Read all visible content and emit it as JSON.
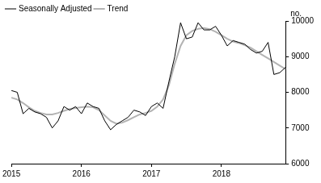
{
  "chart_data": {
    "type": "line",
    "categories": [
      "2015",
      null,
      null,
      null,
      null,
      null,
      null,
      null,
      null,
      null,
      null,
      null,
      "2016",
      null,
      null,
      null,
      null,
      null,
      null,
      null,
      null,
      null,
      null,
      null,
      "2017",
      null,
      null,
      null,
      null,
      null,
      null,
      null,
      null,
      null,
      null,
      null,
      "2018",
      null,
      null,
      null,
      null,
      null,
      null,
      null,
      null,
      null,
      null,
      null
    ],
    "series": [
      {
        "name": "Seasonally Adjusted",
        "color": "#000000",
        "line_style": "solid",
        "values": [
          8050,
          8000,
          7400,
          7550,
          7450,
          7400,
          7300,
          7000,
          7200,
          7600,
          7500,
          7600,
          7400,
          7700,
          7600,
          7550,
          7200,
          6950,
          7100,
          7200,
          7300,
          7500,
          7450,
          7350,
          7600,
          7700,
          7550,
          8300,
          9000,
          9950,
          9500,
          9550,
          9950,
          9750,
          9750,
          9850,
          9600,
          9300,
          9450,
          9400,
          9350,
          9200,
          9100,
          9150,
          9400,
          8500,
          8550,
          8700
        ]
      },
      {
        "name": "Trend",
        "color": "#b3b3b3",
        "line_style": "solid",
        "values": [
          7850,
          7800,
          7700,
          7580,
          7480,
          7420,
          7380,
          7380,
          7420,
          7480,
          7530,
          7560,
          7580,
          7600,
          7580,
          7500,
          7350,
          7200,
          7120,
          7150,
          7220,
          7300,
          7380,
          7420,
          7480,
          7600,
          7800,
          8200,
          8800,
          9300,
          9600,
          9720,
          9780,
          9800,
          9770,
          9700,
          9600,
          9500,
          9420,
          9380,
          9320,
          9250,
          9150,
          9050,
          8950,
          8850,
          8750,
          8650
        ]
      }
    ],
    "ylabel": "no.",
    "ylim": [
      6000,
      10000
    ],
    "yticks": [
      6000,
      7000,
      8000,
      9000,
      10000
    ],
    "legend": "top-left",
    "grid": false
  }
}
